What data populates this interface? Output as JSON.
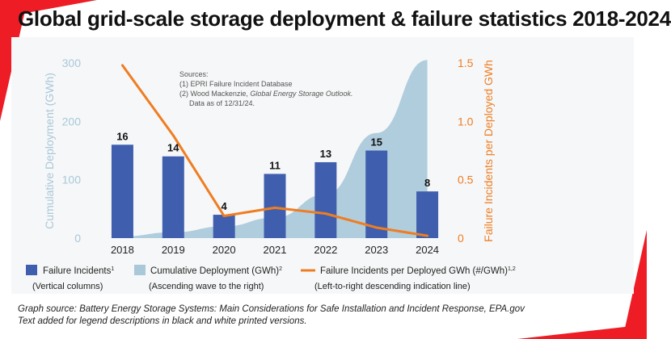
{
  "title": "Global grid-scale storage deployment & failure statistics 2018-2024",
  "sources": {
    "heading": "Sources:",
    "line1": "(1) EPRI Failure Incident Database",
    "line2_prefix": "(2) Wood Mackenzie, ",
    "line2_italic": "Global Energy Storage Outlook.",
    "line3": "Data as of 12/31/24."
  },
  "legend": [
    {
      "label": "Failure Incidents",
      "sup": "1",
      "note": "(Vertical columns)",
      "color": "#3f5fae"
    },
    {
      "label": "Cumulative Deployment (GWh)",
      "sup": "2",
      "note": "(Ascending wave to the right)",
      "color": "#a9c8d9"
    },
    {
      "label": "Failure Incidents per Deployed GWh (#/GWh)",
      "sup": "1,2",
      "note": "(Left-to-right descending indication line)",
      "color": "#ef7d22"
    }
  ],
  "footer": {
    "line1": "Graph source: Battery Energy Storage Systems: Main Considerations for Safe Installation and Incident Response, EPA.gov",
    "line2": "Text added for legend descriptions in black and white printed versions."
  },
  "chart_data": {
    "type": "bar",
    "categories": [
      "2018",
      "2019",
      "2020",
      "2021",
      "2022",
      "2023",
      "2024"
    ],
    "series": [
      {
        "name": "Failure Incidents",
        "type": "bar",
        "axis": "left",
        "values": [
          16,
          14,
          4,
          11,
          13,
          15,
          8
        ]
      },
      {
        "name": "Cumulative Deployment (GWh)",
        "type": "area",
        "axis": "left",
        "values": [
          3,
          10,
          20,
          35,
          75,
          180,
          305
        ]
      },
      {
        "name": "Failure Incidents per Deployed GWh (#/GWh)",
        "type": "line",
        "axis": "right",
        "values": [
          1.48,
          0.88,
          0.19,
          0.26,
          0.21,
          0.09,
          0.02
        ]
      }
    ],
    "data_labels": [
      "16",
      "14",
      "4",
      "11",
      "13",
      "15",
      "8"
    ],
    "ylabel": "Cumulative Deployment (GWh)",
    "y2label": "Failure Incidents per Deployed GWh",
    "ylim": [
      0,
      300
    ],
    "y2lim": [
      0,
      1.5
    ],
    "yticks": [
      "0",
      "100",
      "200",
      "300"
    ],
    "y2ticks": [
      "0",
      "0.5",
      "1.0",
      "1.5"
    ],
    "grid": false,
    "legend_position": "bottom",
    "colors": {
      "bars": "#3f5fae",
      "area": "#a9c8d9",
      "line": "#ef7d22",
      "left_axis": "#a9c8d9",
      "right_axis": "#ef7d22"
    }
  }
}
